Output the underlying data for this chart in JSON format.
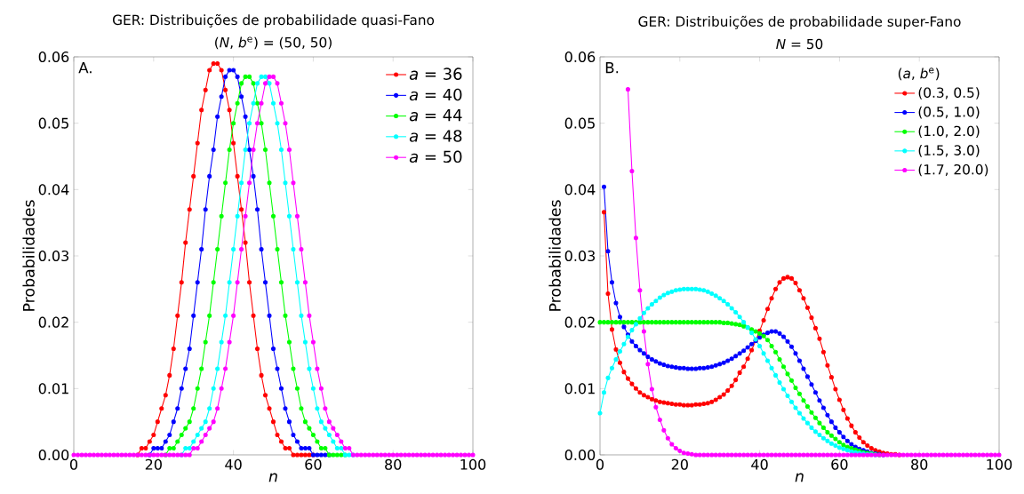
{
  "chart_data": [
    {
      "type": "line",
      "title": "GER: Distribuições de probabilidade quasi-Fano",
      "subtitle": "(*N*, *b*$^{e}$) = (50, 50)",
      "xlabel": "n",
      "ylabel": "Probabilidades",
      "annotations": [
        "A."
      ],
      "x": [
        0,
        1,
        2,
        3,
        4,
        5,
        6,
        7,
        8,
        9,
        10,
        11,
        12,
        13,
        14,
        15,
        16,
        17,
        18,
        19,
        20,
        21,
        22,
        23,
        24,
        25,
        26,
        27,
        28,
        29,
        30,
        31,
        32,
        33,
        34,
        35,
        36,
        37,
        38,
        39,
        40,
        41,
        42,
        43,
        44,
        45,
        46,
        47,
        48,
        49,
        50,
        51,
        52,
        53,
        54,
        55,
        56,
        57,
        58,
        59,
        60,
        61,
        62,
        63,
        64,
        65,
        66,
        67,
        68,
        69,
        70,
        71,
        72,
        73,
        74,
        75,
        76,
        77,
        78,
        79,
        80,
        81,
        82,
        83,
        84,
        85,
        86,
        87,
        88,
        89,
        90,
        91,
        92,
        93,
        94,
        95,
        96,
        97,
        98,
        99,
        100
      ],
      "xlim": [
        0,
        100
      ],
      "xticks": [
        0,
        20,
        40,
        60,
        80,
        100
      ],
      "ylim": [
        0,
        0.06
      ],
      "yticks": [
        {
          "value": 0,
          "label": "0.00"
        },
        {
          "value": 0.01,
          "label": "0.01"
        },
        {
          "value": 0.02,
          "label": "0.02"
        },
        {
          "value": 0.03,
          "label": "0.03"
        },
        {
          "value": 0.04,
          "label": "0.04"
        },
        {
          "value": 0.05,
          "label": "0.05"
        },
        {
          "value": 0.06,
          "label": "0.06"
        }
      ],
      "legend": "top right",
      "marker": "circle",
      "line_style": "solid",
      "series": [
        {
          "name": "*a* = 36",
          "color": "#ff0000",
          "values": [
            null,
            null,
            null,
            null,
            null,
            null,
            null,
            null,
            null,
            null,
            null,
            null,
            null,
            null,
            null,
            null,
            0,
            0.001,
            0.001,
            0.002,
            0.003,
            0.005,
            0.007,
            0.009,
            0.012,
            0.016,
            0.021,
            0.026,
            0.032,
            0.037,
            0.042,
            0.047,
            0.052,
            0.055,
            0.058,
            0.059,
            0.059,
            0.058,
            0.055,
            0.052,
            0.047,
            0.042,
            0.037,
            0.032,
            0.026,
            0.021,
            0.016,
            0.012,
            0.009,
            0.007,
            0.005,
            0.003,
            0.002,
            0.001,
            0.001,
            0,
            0,
            0,
            0,
            0,
            0,
            null,
            null,
            null,
            null,
            null,
            null,
            null,
            null,
            null,
            null,
            null,
            null,
            null,
            null,
            null,
            null,
            null,
            null,
            null,
            null,
            null,
            null,
            null,
            null,
            null,
            null,
            null,
            null,
            null,
            null,
            null,
            null,
            null,
            null,
            null,
            null,
            null,
            null,
            null,
            null
          ]
        },
        {
          "name": "*a* = 40",
          "color": "#0000ff",
          "values": [
            null,
            null,
            null,
            null,
            null,
            null,
            null,
            null,
            null,
            null,
            null,
            null,
            null,
            null,
            null,
            null,
            null,
            null,
            null,
            0,
            0.001,
            0.001,
            0.001,
            0.002,
            0.003,
            0.005,
            0.007,
            0.01,
            0.013,
            0.016,
            0.021,
            0.026,
            0.031,
            0.037,
            0.042,
            0.046,
            0.051,
            0.054,
            0.057,
            0.058,
            0.058,
            0.057,
            0.054,
            0.051,
            0.046,
            0.042,
            0.037,
            0.031,
            0.026,
            0.021,
            0.016,
            0.013,
            0.01,
            0.007,
            0.005,
            0.003,
            0.002,
            0.001,
            0.001,
            0.001,
            0,
            0,
            0,
            0,
            0,
            null,
            null,
            null,
            null,
            null,
            null,
            null,
            null,
            null,
            null,
            null,
            null,
            null,
            null,
            null,
            null,
            null,
            null,
            null,
            null,
            null,
            null,
            null,
            null,
            null,
            null,
            null,
            null,
            null,
            null,
            null,
            null,
            null,
            null,
            null,
            null
          ]
        },
        {
          "name": "*a* = 44",
          "color": "#00ff00",
          "values": [
            null,
            null,
            null,
            null,
            null,
            null,
            null,
            null,
            null,
            null,
            null,
            null,
            null,
            null,
            null,
            null,
            null,
            null,
            null,
            null,
            null,
            null,
            null,
            0,
            0.001,
            0.001,
            0.002,
            0.003,
            0.004,
            0.005,
            0.007,
            0.01,
            0.013,
            0.017,
            0.021,
            0.026,
            0.031,
            0.036,
            0.041,
            0.046,
            0.05,
            0.053,
            0.056,
            0.057,
            0.057,
            0.056,
            0.053,
            0.05,
            0.046,
            0.041,
            0.036,
            0.031,
            0.026,
            0.021,
            0.017,
            0.013,
            0.01,
            0.007,
            0.005,
            0.004,
            0.003,
            0.002,
            0.001,
            0.001,
            0,
            0,
            0,
            0,
            0,
            null,
            null,
            null,
            null,
            null,
            null,
            null,
            null,
            null,
            null,
            null,
            null,
            null,
            null,
            null,
            null,
            null,
            null,
            null,
            null,
            null,
            null,
            null,
            null,
            null,
            null,
            null,
            null,
            null,
            null,
            null,
            null
          ]
        },
        {
          "name": "*a* = 48",
          "color": "#00ffff",
          "values": [
            null,
            null,
            null,
            null,
            null,
            null,
            null,
            null,
            null,
            null,
            null,
            null,
            null,
            null,
            null,
            null,
            null,
            null,
            null,
            null,
            null,
            null,
            null,
            null,
            null,
            null,
            null,
            0,
            0.001,
            0.001,
            0.002,
            0.003,
            0.004,
            0.005,
            0.007,
            0.01,
            0.013,
            0.017,
            0.021,
            0.026,
            0.031,
            0.036,
            0.041,
            0.046,
            0.05,
            0.053,
            0.056,
            0.057,
            0.057,
            0.056,
            0.053,
            0.05,
            0.046,
            0.041,
            0.036,
            0.031,
            0.026,
            0.021,
            0.017,
            0.013,
            0.01,
            0.007,
            0.005,
            0.004,
            0.003,
            0.002,
            0.001,
            0.001,
            0,
            0,
            0,
            null,
            null,
            null,
            null,
            null,
            null,
            null,
            null,
            null,
            null,
            null,
            null,
            null,
            null,
            null,
            null,
            null,
            null,
            null,
            null,
            null,
            null,
            null,
            null,
            null,
            null,
            null,
            null,
            null,
            null
          ]
        },
        {
          "name": "*a* = 50",
          "color": "#ff00ff",
          "values": [
            0,
            0,
            0,
            0,
            0,
            0,
            0,
            0,
            0,
            0,
            0,
            0,
            0,
            0,
            0,
            0,
            0,
            0,
            0,
            0,
            0,
            0,
            0,
            0,
            0,
            0,
            0,
            0,
            0,
            0,
            0.001,
            0.001,
            0.002,
            0.003,
            0.004,
            0.005,
            0.007,
            0.01,
            0.013,
            0.017,
            0.021,
            0.026,
            0.031,
            0.036,
            0.041,
            0.046,
            0.05,
            0.053,
            0.056,
            0.057,
            0.057,
            0.056,
            0.053,
            0.05,
            0.046,
            0.041,
            0.036,
            0.031,
            0.026,
            0.021,
            0.017,
            0.013,
            0.01,
            0.007,
            0.005,
            0.004,
            0.003,
            0.002,
            0.001,
            0.001,
            0,
            0,
            0,
            0,
            0,
            0,
            0,
            0,
            0,
            0,
            0,
            0,
            0,
            0,
            0,
            0,
            0,
            0,
            0,
            0,
            0,
            0,
            0,
            0,
            0,
            0,
            0,
            0,
            0,
            0,
            0
          ]
        }
      ]
    },
    {
      "type": "line",
      "title": "GER: Distribuições de probabilidade super-Fano",
      "subtitle": "*N* = 50",
      "xlabel": "n",
      "ylabel": "Probabilidades",
      "annotations": [
        "B."
      ],
      "legend_title": "(*a*, *b*$^{e}$)",
      "x": [
        0,
        1,
        2,
        3,
        4,
        5,
        6,
        7,
        8,
        9,
        10,
        11,
        12,
        13,
        14,
        15,
        16,
        17,
        18,
        19,
        20,
        21,
        22,
        23,
        24,
        25,
        26,
        27,
        28,
        29,
        30,
        31,
        32,
        33,
        34,
        35,
        36,
        37,
        38,
        39,
        40,
        41,
        42,
        43,
        44,
        45,
        46,
        47,
        48,
        49,
        50,
        51,
        52,
        53,
        54,
        55,
        56,
        57,
        58,
        59,
        60,
        61,
        62,
        63,
        64,
        65,
        66,
        67,
        68,
        69,
        70,
        71,
        72,
        73,
        74,
        75,
        76,
        77,
        78,
        79,
        80,
        81,
        82,
        83,
        84,
        85,
        86,
        87,
        88,
        89,
        90,
        91,
        92,
        93,
        94,
        95,
        96,
        97,
        98,
        99,
        100
      ],
      "xlim": [
        0,
        100
      ],
      "xticks": [
        0,
        20,
        40,
        60,
        80,
        100
      ],
      "ylim": [
        0,
        0.06
      ],
      "yticks": [
        {
          "value": 0,
          "label": "0.00"
        },
        {
          "value": 0.01,
          "label": "0.01"
        },
        {
          "value": 0.02,
          "label": "0.02"
        },
        {
          "value": 0.03,
          "label": "0.03"
        },
        {
          "value": 0.04,
          "label": "0.04"
        },
        {
          "value": 0.05,
          "label": "0.05"
        },
        {
          "value": 0.06,
          "label": "0.06"
        }
      ],
      "legend": "top right",
      "marker": "circle",
      "line_style": "solid",
      "series": [
        {
          "name": "(0.3, 0.5)",
          "color": "#ff0000",
          "values": [
            null,
            0.0366,
            0.0243,
            0.0189,
            0.0159,
            0.0139,
            0.0125,
            0.0115,
            0.0107,
            0.01,
            0.0094,
            0.009,
            0.0087,
            0.0084,
            0.0082,
            0.008,
            0.0079,
            0.0078,
            0.0077,
            0.0076,
            0.0076,
            0.0075,
            0.0075,
            0.0075,
            0.0076,
            0.0076,
            0.0077,
            0.0078,
            0.008,
            0.0083,
            0.0087,
            0.0091,
            0.0097,
            0.0104,
            0.0113,
            0.0124,
            0.0133,
            0.0145,
            0.0158,
            0.0172,
            0.0187,
            0.0203,
            0.022,
            0.0236,
            0.025,
            0.026,
            0.0266,
            0.0268,
            0.0266,
            0.0259,
            0.0248,
            0.0236,
            0.0222,
            0.0207,
            0.0191,
            0.0175,
            0.0155,
            0.0135,
            0.0117,
            0.0099,
            0.0083,
            0.0068,
            0.0055,
            0.0044,
            0.0034,
            0.0026,
            0.0019,
            0.0014,
            0.001,
            0.0007,
            0.0005,
            0.0003,
            0.0002,
            0.0001,
            0.0001,
            0,
            null,
            null,
            null,
            null,
            null,
            null,
            null,
            null,
            null,
            null,
            null,
            null,
            null,
            null,
            null,
            null,
            null,
            null,
            null,
            null,
            null,
            null,
            null,
            null,
            null
          ]
        },
        {
          "name": "(0.5, 1.0)",
          "color": "#0000ff",
          "values": [
            null,
            0.0404,
            0.0307,
            0.026,
            0.0229,
            0.0208,
            0.0193,
            0.0181,
            0.0171,
            0.0164,
            0.0158,
            0.0153,
            0.0148,
            0.0144,
            0.0141,
            0.0138,
            0.0136,
            0.0134,
            0.0133,
            0.0132,
            0.0131,
            0.0131,
            0.013,
            0.013,
            0.013,
            0.0131,
            0.0131,
            0.0132,
            0.0133,
            0.0135,
            0.0137,
            0.0139,
            0.0142,
            0.0145,
            0.0149,
            0.0153,
            0.0157,
            0.0162,
            0.0167,
            0.0172,
            0.0177,
            0.0181,
            0.0184,
            0.0186,
            0.0186,
            0.0183,
            0.0178,
            0.0171,
            0.0163,
            0.0153,
            0.0142,
            0.013,
            0.0118,
            0.0106,
            0.0094,
            0.0082,
            0.0071,
            0.006,
            0.005,
            0.0041,
            0.0034,
            0.0027,
            0.0021,
            0.0016,
            0.0012,
            0.0009,
            0.0007,
            0.0005,
            0.0003,
            0.0002,
            0.0001,
            0,
            null,
            null,
            null,
            null,
            null,
            null,
            null,
            null,
            null,
            null,
            null,
            null,
            null,
            null,
            null,
            null,
            null,
            null,
            null,
            null,
            null,
            null,
            null,
            null,
            null,
            null,
            null,
            null,
            null
          ]
        },
        {
          "name": "(1.0, 2.0)",
          "color": "#00ff00",
          "values": [
            0.02,
            0.02,
            0.02,
            0.02,
            0.02,
            0.02,
            0.02,
            0.02,
            0.02,
            0.02,
            0.02,
            0.02,
            0.02,
            0.02,
            0.02,
            0.02,
            0.02,
            0.02,
            0.02,
            0.02,
            0.02,
            0.02,
            0.02,
            0.02,
            0.02,
            0.02,
            0.02,
            0.02,
            0.02,
            0.02,
            0.02,
            0.0199,
            0.0199,
            0.0198,
            0.0197,
            0.0196,
            0.0194,
            0.0192,
            0.0189,
            0.0186,
            0.0183,
            0.0179,
            0.0173,
            0.0164,
            0.0155,
            0.0144,
            0.0133,
            0.0122,
            0.0112,
            0.0101,
            0.0092,
            0.0082,
            0.0073,
            0.0064,
            0.0056,
            0.0048,
            0.0041,
            0.0034,
            0.0029,
            0.0024,
            0.0019,
            0.0015,
            0.0012,
            0.001,
            0.0008,
            0.0006,
            0.0004,
            0.0003,
            0.0002,
            0.0001,
            0,
            null,
            null,
            null,
            null,
            null,
            null,
            null,
            null,
            null,
            null,
            null,
            null,
            null,
            null,
            null,
            null,
            null,
            null,
            null,
            null,
            null,
            null,
            null,
            null,
            null,
            null,
            null,
            null,
            null,
            null
          ]
        },
        {
          "name": "(1.5, 3.0)",
          "color": "#00ffff",
          "values": [
            0.0063,
            0.0094,
            0.0116,
            0.0131,
            0.0144,
            0.0156,
            0.0167,
            0.0178,
            0.0188,
            0.0197,
            0.0206,
            0.0214,
            0.0221,
            0.0227,
            0.0232,
            0.0237,
            0.0241,
            0.0244,
            0.0246,
            0.0248,
            0.0249,
            0.025,
            0.025,
            0.025,
            0.025,
            0.0249,
            0.0248,
            0.0246,
            0.0243,
            0.024,
            0.0236,
            0.0232,
            0.0227,
            0.0221,
            0.0215,
            0.0208,
            0.02,
            0.0192,
            0.0184,
            0.0174,
            0.0164,
            0.0153,
            0.0142,
            0.0131,
            0.012,
            0.0109,
            0.0099,
            0.0089,
            0.008,
            0.0071,
            0.0063,
            0.0055,
            0.0048,
            0.0041,
            0.0035,
            0.003,
            0.0025,
            0.0021,
            0.0017,
            0.0014,
            0.0011,
            0.0009,
            0.0007,
            0.0005,
            0.0004,
            0.0003,
            0.0002,
            0.0001,
            0.0001,
            0,
            null,
            null,
            null,
            null,
            null,
            null,
            null,
            null,
            null,
            null,
            null,
            null,
            null,
            null,
            null,
            null,
            null,
            null,
            null,
            null,
            null,
            null,
            null,
            null,
            null,
            null,
            null,
            null,
            null,
            null,
            null
          ]
        },
        {
          "name": "(1.7, 20.0)",
          "color": "#ff00ff",
          "values": [
            null,
            null,
            null,
            null,
            null,
            null,
            null,
            0.0551,
            0.0428,
            0.0327,
            0.0248,
            0.0186,
            0.0137,
            0.0099,
            0.0072,
            0.0053,
            0.0037,
            0.0025,
            0.0016,
            0.001,
            0.0006,
            0.0003,
            0.0002,
            0.0001,
            0,
            0,
            0,
            0,
            0,
            0,
            0,
            0,
            0,
            0,
            0,
            0,
            0,
            0,
            0,
            0,
            0,
            0,
            0,
            0,
            0,
            0,
            0,
            0,
            0,
            0,
            0,
            0,
            0,
            0,
            0,
            0,
            0,
            0,
            0,
            0,
            0,
            0,
            0,
            0,
            0,
            0,
            0,
            0,
            0,
            0,
            0,
            0,
            0,
            0,
            0,
            0,
            0,
            0,
            0,
            0,
            0,
            0,
            0,
            0,
            0,
            0,
            0,
            0,
            0,
            0,
            0,
            0,
            0,
            0,
            0,
            0,
            0,
            0,
            0,
            0,
            0
          ]
        }
      ]
    }
  ]
}
